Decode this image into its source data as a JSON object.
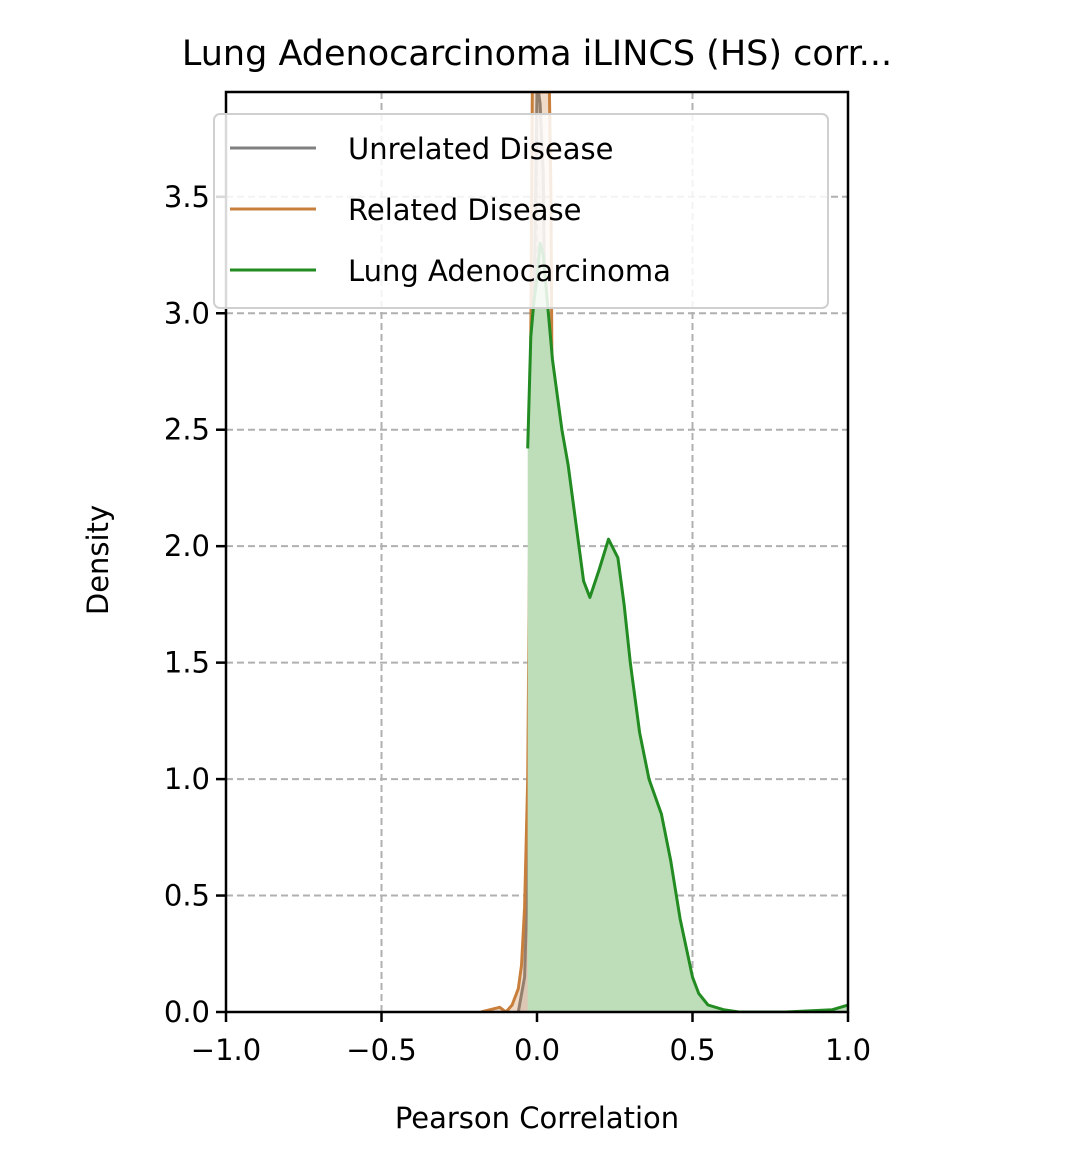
{
  "chart_data": {
    "type": "area",
    "title": "Lung Adenocarcinoma iLINCS (HS) corr...",
    "xlabel": "Pearson Correlation",
    "ylabel": "Density",
    "xlim": [
      -1.0,
      1.0
    ],
    "ylim": [
      0.0,
      3.95
    ],
    "xticks": [
      -1.0,
      -0.5,
      0.0,
      0.5,
      1.0
    ],
    "xtick_labels": [
      "−1.0",
      "−0.5",
      "0.0",
      "0.5",
      "1.0"
    ],
    "yticks": [
      0.0,
      0.5,
      1.0,
      1.5,
      2.0,
      2.5,
      3.0,
      3.5
    ],
    "ytick_labels": [
      "0.0",
      "0.5",
      "1.0",
      "1.5",
      "2.0",
      "2.5",
      "3.0",
      "3.5"
    ],
    "grid": true,
    "legend_position": "top-right",
    "series": [
      {
        "name": "Unrelated Disease",
        "color": "#808080",
        "x": [
          -0.06,
          -0.04,
          -0.03,
          -0.02,
          -0.01,
          0.0,
          0.005,
          0.01,
          0.02,
          0.025,
          0.03,
          0.04,
          0.05,
          0.06,
          0.07,
          0.08,
          0.1,
          0.12
        ],
        "y": [
          0.0,
          0.15,
          0.6,
          1.6,
          3.0,
          3.95,
          3.95,
          3.9,
          3.6,
          3.0,
          2.0,
          1.0,
          0.4,
          0.15,
          0.08,
          0.05,
          0.02,
          0.0
        ]
      },
      {
        "name": "Related Disease",
        "color": "#c97f3c",
        "x": [
          -0.18,
          -0.12,
          -0.1,
          -0.08,
          -0.06,
          -0.05,
          -0.04,
          -0.03,
          -0.025,
          -0.02,
          -0.015,
          -0.01,
          0.0,
          0.02,
          0.04,
          0.045,
          0.05,
          0.06,
          0.07,
          0.08,
          0.09,
          0.1,
          0.12,
          0.14,
          0.18,
          0.22,
          0.3,
          0.4,
          0.46
        ],
        "y": [
          0.0,
          0.02,
          0.0,
          0.03,
          0.1,
          0.2,
          0.45,
          1.0,
          1.8,
          2.9,
          3.95,
          3.95,
          3.95,
          3.95,
          3.95,
          3.5,
          2.3,
          1.5,
          1.0,
          0.75,
          0.5,
          0.3,
          0.2,
          0.12,
          0.06,
          0.04,
          0.03,
          0.02,
          0.0
        ]
      },
      {
        "name": "Lung Adenocarcinoma",
        "color": "#228b22",
        "fill": "#bedeb9",
        "x": [
          -0.03,
          -0.02,
          -0.01,
          0.0,
          0.01,
          0.02,
          0.03,
          0.05,
          0.08,
          0.1,
          0.12,
          0.15,
          0.17,
          0.2,
          0.23,
          0.26,
          0.28,
          0.3,
          0.33,
          0.36,
          0.4,
          0.43,
          0.46,
          0.5,
          0.52,
          0.55,
          0.6,
          0.65,
          0.8,
          0.95,
          1.0
        ],
        "y": [
          2.42,
          2.9,
          3.05,
          3.15,
          3.3,
          3.25,
          3.1,
          2.8,
          2.5,
          2.35,
          2.15,
          1.85,
          1.78,
          1.9,
          2.03,
          1.95,
          1.75,
          1.5,
          1.2,
          1.0,
          0.85,
          0.65,
          0.4,
          0.15,
          0.08,
          0.03,
          0.01,
          0.0,
          0.0,
          0.01,
          0.03
        ]
      }
    ]
  }
}
